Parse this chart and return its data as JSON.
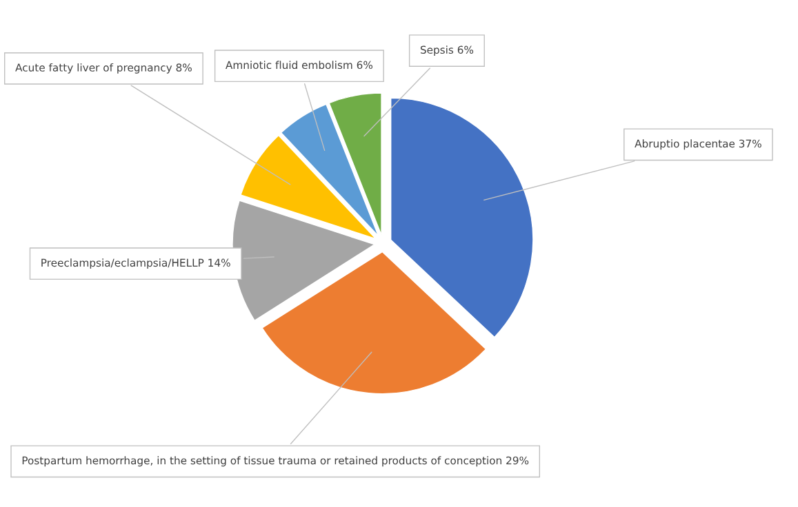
{
  "chart_data": {
    "type": "pie",
    "categories": [
      "Abruptio placentae",
      "Postpartum hemorrhage, in the setting of tissue trauma or retained products of conception",
      "Preeclampsia/eclampsia/HELLP",
      "Acute fatty liver of pregnancy",
      "Amniotic fluid embolism",
      "Sepsis"
    ],
    "values": [
      37,
      29,
      14,
      8,
      6,
      6
    ],
    "value_labels": [
      "37%",
      "29%",
      "14%",
      "8%",
      "6%",
      "6%"
    ],
    "colors": [
      "#4472c4",
      "#ed7d31",
      "#a5a5a5",
      "#ffc000",
      "#5b9bd5",
      "#70ad47"
    ]
  }
}
